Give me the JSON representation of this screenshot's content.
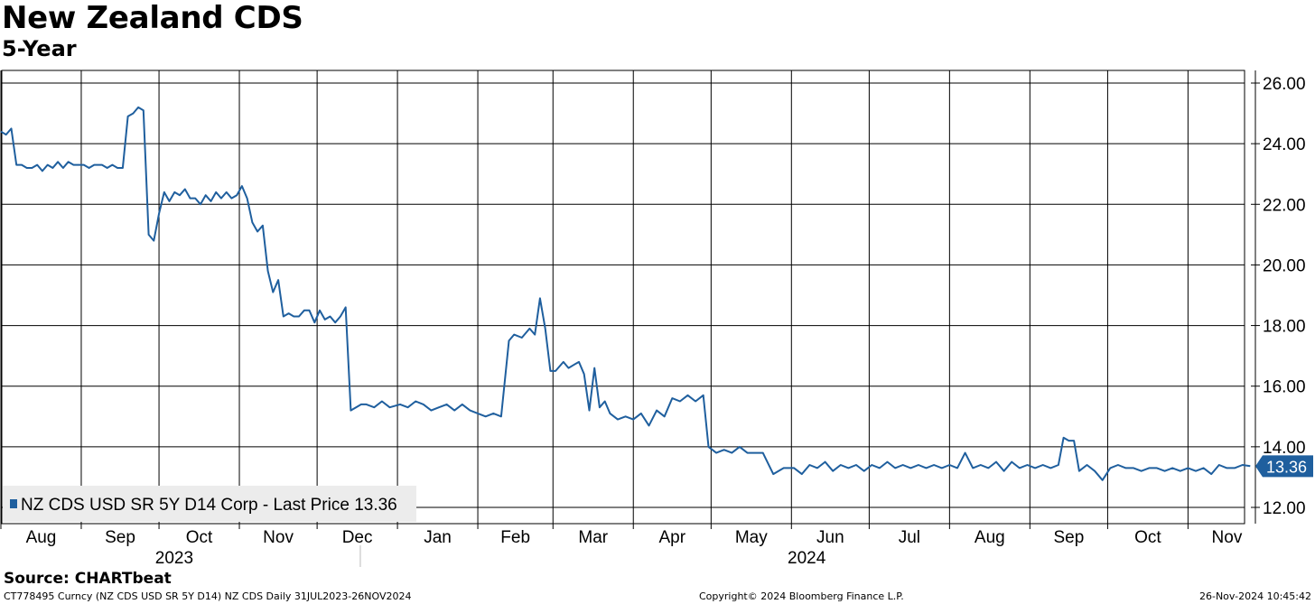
{
  "header": {
    "title": "New Zealand CDS",
    "subtitle": "5-Year"
  },
  "footer": {
    "source": "Source:  CHARTbeat",
    "ticker_info": "CT778495 Curncy (NZ CDS USD SR 5Y D14) NZ CDS  Daily 31JUL2023-26NOV2024",
    "copyright": "Copyright© 2024 Bloomberg Finance L.P.",
    "timestamp": "26-Nov-2024 10:45:42"
  },
  "colors": {
    "series": "#1f5f9e",
    "grid": "#000000",
    "legend_bg": "#ececec",
    "last_price_bg": "#1f5f9e"
  },
  "chart_data": {
    "type": "line",
    "title": "New Zealand CDS",
    "subtitle": "5-Year",
    "ylim": [
      11.6,
      26.4
    ],
    "yticks": [
      12,
      14,
      16,
      18,
      20,
      22,
      24,
      26
    ],
    "ytick_labels": [
      "12.00",
      "14.00",
      "16.00",
      "18.00",
      "20.00",
      "22.00",
      "24.00",
      "26.00"
    ],
    "y_axis_side": "right",
    "grid": true,
    "legend_position": "bottom-left",
    "x_range": [
      "2023-07-31",
      "2024-11-26"
    ],
    "x_month_labels": [
      "Aug",
      "Sep",
      "Oct",
      "Nov",
      "Dec",
      "Jan",
      "Feb",
      "Mar",
      "Apr",
      "May",
      "Jun",
      "Jul",
      "Aug",
      "Sep",
      "Oct",
      "Nov"
    ],
    "x_month_starts": [
      "2023-08-01",
      "2023-09-01",
      "2023-10-01",
      "2023-11-01",
      "2023-12-01",
      "2024-01-01",
      "2024-02-01",
      "2024-03-01",
      "2024-04-01",
      "2024-05-01",
      "2024-06-01",
      "2024-07-01",
      "2024-08-01",
      "2024-09-01",
      "2024-10-01",
      "2024-11-01"
    ],
    "x_gridlines": [
      "2023-07-31",
      "2023-08-31",
      "2023-09-30",
      "2023-10-31",
      "2023-11-30",
      "2023-12-31",
      "2024-01-31",
      "2024-02-29",
      "2024-03-31",
      "2024-04-30",
      "2024-05-31",
      "2024-06-30",
      "2024-07-31",
      "2024-08-31",
      "2024-09-30",
      "2024-10-31",
      "2024-11-30"
    ],
    "year_labels": [
      {
        "label": "2023",
        "date": "2023-10-01"
      },
      {
        "label": "2024",
        "date": "2024-06-01"
      }
    ],
    "year_separator": "2024-01-01",
    "series": [
      {
        "name": "NZ CDS USD SR 5Y D14 Corp - Last Price 13.36",
        "last_value": "13.36",
        "points": [
          [
            "2023-07-31",
            24.4
          ],
          [
            "2023-08-02",
            24.3
          ],
          [
            "2023-08-04",
            24.5
          ],
          [
            "2023-08-06",
            23.3
          ],
          [
            "2023-08-08",
            23.3
          ],
          [
            "2023-08-10",
            23.2
          ],
          [
            "2023-08-12",
            23.2
          ],
          [
            "2023-08-14",
            23.3
          ],
          [
            "2023-08-16",
            23.1
          ],
          [
            "2023-08-18",
            23.3
          ],
          [
            "2023-08-20",
            23.2
          ],
          [
            "2023-08-22",
            23.4
          ],
          [
            "2023-08-24",
            23.2
          ],
          [
            "2023-08-26",
            23.4
          ],
          [
            "2023-08-28",
            23.3
          ],
          [
            "2023-08-30",
            23.3
          ],
          [
            "2023-09-01",
            23.3
          ],
          [
            "2023-09-03",
            23.2
          ],
          [
            "2023-09-05",
            23.3
          ],
          [
            "2023-09-08",
            23.3
          ],
          [
            "2023-09-10",
            23.2
          ],
          [
            "2023-09-12",
            23.3
          ],
          [
            "2023-09-14",
            23.2
          ],
          [
            "2023-09-16",
            23.2
          ],
          [
            "2023-09-18",
            24.9
          ],
          [
            "2023-09-20",
            25.0
          ],
          [
            "2023-09-22",
            25.2
          ],
          [
            "2023-09-24",
            25.1
          ],
          [
            "2023-09-26",
            21.0
          ],
          [
            "2023-09-28",
            20.8
          ],
          [
            "2023-09-30",
            21.7
          ],
          [
            "2023-10-02",
            22.4
          ],
          [
            "2023-10-04",
            22.1
          ],
          [
            "2023-10-06",
            22.4
          ],
          [
            "2023-10-08",
            22.3
          ],
          [
            "2023-10-10",
            22.5
          ],
          [
            "2023-10-12",
            22.2
          ],
          [
            "2023-10-14",
            22.2
          ],
          [
            "2023-10-16",
            22.0
          ],
          [
            "2023-10-18",
            22.3
          ],
          [
            "2023-10-20",
            22.1
          ],
          [
            "2023-10-22",
            22.4
          ],
          [
            "2023-10-24",
            22.2
          ],
          [
            "2023-10-26",
            22.4
          ],
          [
            "2023-10-28",
            22.2
          ],
          [
            "2023-10-30",
            22.3
          ],
          [
            "2023-11-01",
            22.6
          ],
          [
            "2023-11-03",
            22.2
          ],
          [
            "2023-11-05",
            21.4
          ],
          [
            "2023-11-07",
            21.1
          ],
          [
            "2023-11-09",
            21.3
          ],
          [
            "2023-11-11",
            19.8
          ],
          [
            "2023-11-13",
            19.1
          ],
          [
            "2023-11-15",
            19.5
          ],
          [
            "2023-11-17",
            18.3
          ],
          [
            "2023-11-19",
            18.4
          ],
          [
            "2023-11-21",
            18.3
          ],
          [
            "2023-11-23",
            18.3
          ],
          [
            "2023-11-25",
            18.5
          ],
          [
            "2023-11-27",
            18.5
          ],
          [
            "2023-11-29",
            18.1
          ],
          [
            "2023-12-01",
            18.5
          ],
          [
            "2023-12-03",
            18.2
          ],
          [
            "2023-12-05",
            18.3
          ],
          [
            "2023-12-07",
            18.1
          ],
          [
            "2023-12-09",
            18.3
          ],
          [
            "2023-12-11",
            18.6
          ],
          [
            "2023-12-13",
            15.2
          ],
          [
            "2023-12-15",
            15.3
          ],
          [
            "2023-12-17",
            15.4
          ],
          [
            "2023-12-19",
            15.4
          ],
          [
            "2023-12-22",
            15.3
          ],
          [
            "2023-12-25",
            15.5
          ],
          [
            "2023-12-28",
            15.3
          ],
          [
            "2024-01-01",
            15.4
          ],
          [
            "2024-01-04",
            15.3
          ],
          [
            "2024-01-07",
            15.5
          ],
          [
            "2024-01-10",
            15.4
          ],
          [
            "2024-01-13",
            15.2
          ],
          [
            "2024-01-16",
            15.3
          ],
          [
            "2024-01-19",
            15.4
          ],
          [
            "2024-01-22",
            15.2
          ],
          [
            "2024-01-25",
            15.4
          ],
          [
            "2024-01-28",
            15.2
          ],
          [
            "2024-01-31",
            15.1
          ],
          [
            "2024-02-03",
            15.0
          ],
          [
            "2024-02-06",
            15.1
          ],
          [
            "2024-02-09",
            15.0
          ],
          [
            "2024-02-12",
            17.5
          ],
          [
            "2024-02-14",
            17.7
          ],
          [
            "2024-02-17",
            17.6
          ],
          [
            "2024-02-20",
            17.9
          ],
          [
            "2024-02-22",
            17.7
          ],
          [
            "2024-02-24",
            18.9
          ],
          [
            "2024-02-26",
            17.9
          ],
          [
            "2024-02-28",
            16.5
          ],
          [
            "2024-03-01",
            16.5
          ],
          [
            "2024-03-04",
            16.8
          ],
          [
            "2024-03-06",
            16.6
          ],
          [
            "2024-03-08",
            16.7
          ],
          [
            "2024-03-10",
            16.8
          ],
          [
            "2024-03-12",
            16.4
          ],
          [
            "2024-03-14",
            15.2
          ],
          [
            "2024-03-16",
            16.6
          ],
          [
            "2024-03-18",
            15.3
          ],
          [
            "2024-03-20",
            15.5
          ],
          [
            "2024-03-22",
            15.1
          ],
          [
            "2024-03-25",
            14.9
          ],
          [
            "2024-03-28",
            15.0
          ],
          [
            "2024-03-31",
            14.9
          ],
          [
            "2024-04-03",
            15.1
          ],
          [
            "2024-04-06",
            14.7
          ],
          [
            "2024-04-09",
            15.2
          ],
          [
            "2024-04-12",
            15.0
          ],
          [
            "2024-04-15",
            15.6
          ],
          [
            "2024-04-18",
            15.5
          ],
          [
            "2024-04-21",
            15.7
          ],
          [
            "2024-04-24",
            15.5
          ],
          [
            "2024-04-27",
            15.7
          ],
          [
            "2024-04-29",
            14.0
          ],
          [
            "2024-05-02",
            13.8
          ],
          [
            "2024-05-05",
            13.9
          ],
          [
            "2024-05-08",
            13.8
          ],
          [
            "2024-05-11",
            14.0
          ],
          [
            "2024-05-14",
            13.8
          ],
          [
            "2024-05-17",
            13.8
          ],
          [
            "2024-05-20",
            13.8
          ],
          [
            "2024-05-24",
            13.1
          ],
          [
            "2024-05-28",
            13.3
          ],
          [
            "2024-06-01",
            13.3
          ],
          [
            "2024-06-04",
            13.1
          ],
          [
            "2024-06-07",
            13.4
          ],
          [
            "2024-06-10",
            13.3
          ],
          [
            "2024-06-13",
            13.5
          ],
          [
            "2024-06-16",
            13.2
          ],
          [
            "2024-06-19",
            13.4
          ],
          [
            "2024-06-22",
            13.3
          ],
          [
            "2024-06-25",
            13.4
          ],
          [
            "2024-06-28",
            13.2
          ],
          [
            "2024-07-01",
            13.4
          ],
          [
            "2024-07-04",
            13.3
          ],
          [
            "2024-07-07",
            13.5
          ],
          [
            "2024-07-10",
            13.3
          ],
          [
            "2024-07-13",
            13.4
          ],
          [
            "2024-07-16",
            13.3
          ],
          [
            "2024-07-19",
            13.4
          ],
          [
            "2024-07-22",
            13.3
          ],
          [
            "2024-07-25",
            13.4
          ],
          [
            "2024-07-28",
            13.3
          ],
          [
            "2024-07-31",
            13.4
          ],
          [
            "2024-08-03",
            13.3
          ],
          [
            "2024-08-06",
            13.8
          ],
          [
            "2024-08-09",
            13.3
          ],
          [
            "2024-08-12",
            13.4
          ],
          [
            "2024-08-15",
            13.3
          ],
          [
            "2024-08-18",
            13.5
          ],
          [
            "2024-08-21",
            13.2
          ],
          [
            "2024-08-24",
            13.5
          ],
          [
            "2024-08-27",
            13.3
          ],
          [
            "2024-08-30",
            13.4
          ],
          [
            "2024-09-02",
            13.3
          ],
          [
            "2024-09-05",
            13.4
          ],
          [
            "2024-09-08",
            13.3
          ],
          [
            "2024-09-11",
            13.4
          ],
          [
            "2024-09-13",
            14.3
          ],
          [
            "2024-09-15",
            14.2
          ],
          [
            "2024-09-17",
            14.2
          ],
          [
            "2024-09-19",
            13.2
          ],
          [
            "2024-09-22",
            13.4
          ],
          [
            "2024-09-25",
            13.2
          ],
          [
            "2024-09-28",
            12.9
          ],
          [
            "2024-10-01",
            13.3
          ],
          [
            "2024-10-04",
            13.4
          ],
          [
            "2024-10-07",
            13.3
          ],
          [
            "2024-10-10",
            13.3
          ],
          [
            "2024-10-13",
            13.2
          ],
          [
            "2024-10-16",
            13.3
          ],
          [
            "2024-10-19",
            13.3
          ],
          [
            "2024-10-22",
            13.2
          ],
          [
            "2024-10-25",
            13.3
          ],
          [
            "2024-10-28",
            13.2
          ],
          [
            "2024-10-31",
            13.3
          ],
          [
            "2024-11-03",
            13.2
          ],
          [
            "2024-11-06",
            13.3
          ],
          [
            "2024-11-09",
            13.1
          ],
          [
            "2024-11-12",
            13.4
          ],
          [
            "2024-11-15",
            13.3
          ],
          [
            "2024-11-18",
            13.3
          ],
          [
            "2024-11-21",
            13.4
          ],
          [
            "2024-11-24",
            13.36
          ]
        ]
      }
    ]
  }
}
